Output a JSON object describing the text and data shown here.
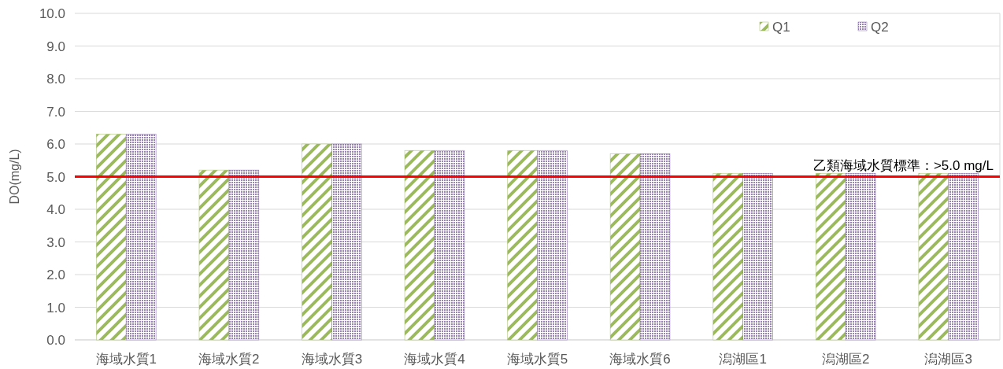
{
  "chart_data": {
    "type": "bar",
    "ylabel": "DO(mg/L)",
    "categories": [
      "海域水質1",
      "海域水質2",
      "海域水質3",
      "海域水質4",
      "海域水質5",
      "海域水質6",
      "潟湖區1",
      "潟湖區2",
      "潟湖區3"
    ],
    "series": [
      {
        "name": "Q1",
        "color": "#9bbb59",
        "values": [
          6.3,
          5.2,
          6.0,
          5.8,
          5.8,
          5.7,
          5.1,
          5.1,
          5.1
        ]
      },
      {
        "name": "Q2",
        "color": "#8064a2",
        "values": [
          6.3,
          5.2,
          6.0,
          5.8,
          5.8,
          5.7,
          5.1,
          5.1,
          5.1
        ]
      }
    ],
    "ylim": [
      0,
      10
    ],
    "yticks": [
      {
        "value": 0,
        "label": "0.0"
      },
      {
        "value": 1,
        "label": "1.0"
      },
      {
        "value": 2,
        "label": "2.0"
      },
      {
        "value": 3,
        "label": "3.0"
      },
      {
        "value": 4,
        "label": "4.0"
      },
      {
        "value": 5,
        "label": "5.0"
      },
      {
        "value": 6,
        "label": "6.0"
      },
      {
        "value": 7,
        "label": "7.0"
      },
      {
        "value": 8,
        "label": "8.0"
      },
      {
        "value": 9,
        "label": "9.0"
      },
      {
        "value": 10,
        "label": "10.0"
      }
    ],
    "ref_lines": [
      {
        "axis": "y",
        "value": 5.0,
        "label": "乙類海域水質標準：>5.0 mg/L",
        "color": "#ff0000"
      }
    ],
    "grid": "y",
    "legend": "top right"
  }
}
